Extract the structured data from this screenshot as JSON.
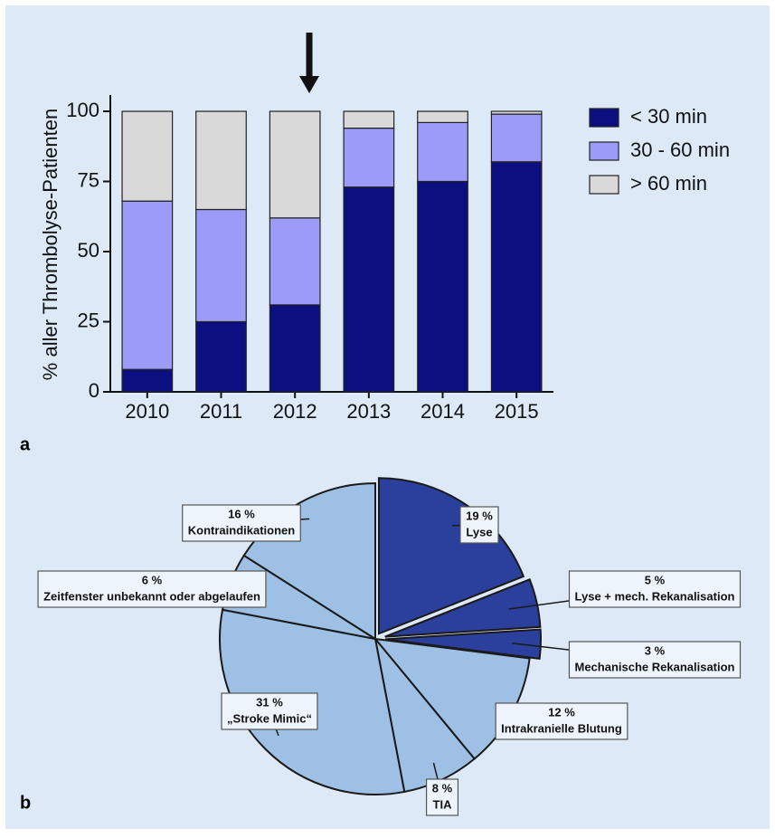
{
  "chart_data": [
    {
      "type": "stacked_bar",
      "panel_label": "a",
      "y_label": "% aller Thrombolyse-Patienten",
      "categories": [
        "2010",
        "2011",
        "2012",
        "2013",
        "2014",
        "2015"
      ],
      "series": [
        {
          "name": "< 30 min",
          "color": "#0b0f80",
          "values": [
            8,
            25,
            31,
            73,
            75,
            82
          ]
        },
        {
          "name": "30 - 60 min",
          "color": "#9c9cf8",
          "values": [
            60,
            40,
            31,
            21,
            21,
            17
          ]
        },
        {
          "name": "> 60 min",
          "color": "#d9d9d9",
          "values": [
            32,
            35,
            38,
            6,
            4,
            1
          ]
        }
      ],
      "ylim": [
        0,
        100
      ],
      "yticks": [
        0,
        25,
        50,
        75,
        100
      ],
      "grid": false,
      "legend": "right"
    },
    {
      "type": "pie",
      "panel_label": "b",
      "categories": [
        "Lyse",
        "Lyse + mech. Rekanalisation",
        "Mechanische Rekanalisation",
        "Intrakranielle Blutung",
        "TIA",
        "„Stroke Mimic“",
        "Zeitfenster unbekannt oder abgelaufen",
        "Kontraindikationen"
      ],
      "values": [
        19,
        5,
        3,
        12,
        8,
        31,
        6,
        16
      ],
      "value_labels": [
        "19 %",
        "5 %",
        "3 %",
        "12 %",
        "8 %",
        "31 %",
        "6 %",
        "16 %"
      ],
      "colors": [
        "#2b3f9c",
        "#2b3f9c",
        "#2b3f9c",
        "#9dc0e4",
        "#9dc0e4",
        "#9dc0e4",
        "#9dc0e4",
        "#9dc0e4"
      ]
    }
  ]
}
